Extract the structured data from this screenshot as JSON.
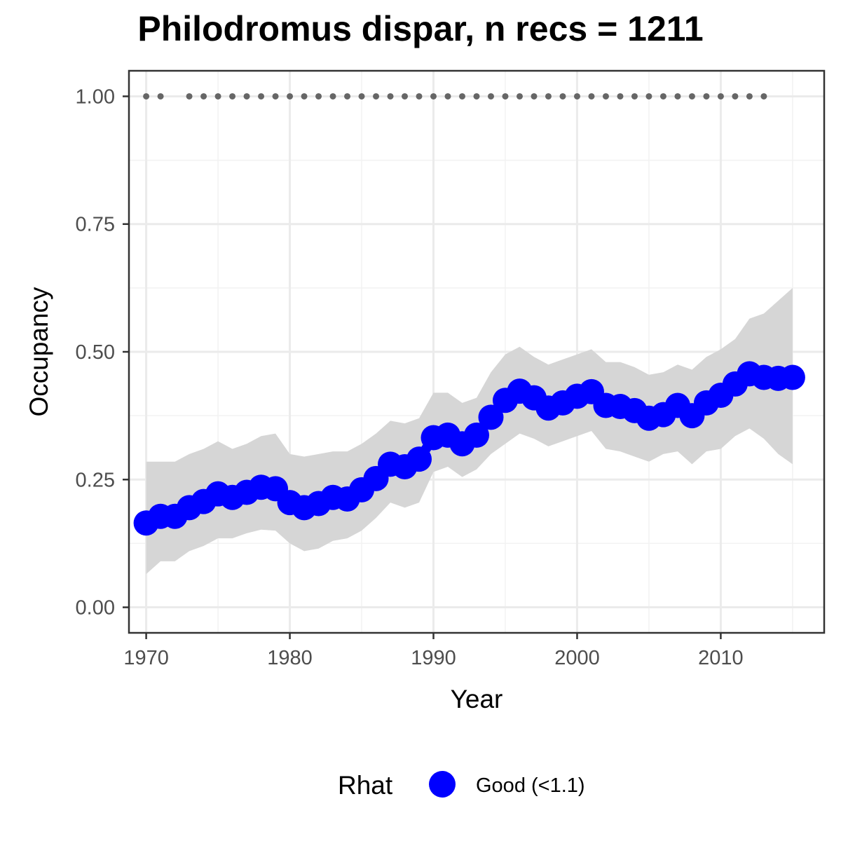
{
  "chart_data": {
    "type": "line",
    "title": "Philodromus dispar, n recs = 1211",
    "xlabel": "Year",
    "ylabel": "Occupancy",
    "xlim": [
      1968.8,
      2017.2
    ],
    "ylim": [
      -0.05,
      1.05
    ],
    "x_ticks": [
      1970,
      1980,
      1990,
      2000,
      2010
    ],
    "x_tick_labels": [
      "1970",
      "1980",
      "1990",
      "2000",
      "2010"
    ],
    "y_ticks": [
      0,
      0.25,
      0.5,
      0.75,
      1.0
    ],
    "y_tick_labels": [
      "0.00",
      "0.25",
      "0.50",
      "0.75",
      "1.00"
    ],
    "grid": true,
    "colors": {
      "series": "#0000ff",
      "ribbon": "#d6d6d6",
      "dots": "#666666"
    },
    "series": [
      {
        "name": "Good (<1.1)",
        "x": [
          1970,
          1971,
          1972,
          1973,
          1974,
          1975,
          1976,
          1977,
          1978,
          1979,
          1980,
          1981,
          1982,
          1983,
          1984,
          1985,
          1986,
          1987,
          1988,
          1989,
          1990,
          1991,
          1992,
          1993,
          1994,
          1995,
          1996,
          1997,
          1998,
          1999,
          2000,
          2001,
          2002,
          2003,
          2004,
          2005,
          2006,
          2007,
          2008,
          2009,
          2010,
          2011,
          2012,
          2013,
          2014,
          2015
        ],
        "y": [
          0.165,
          0.178,
          0.178,
          0.195,
          0.207,
          0.222,
          0.215,
          0.225,
          0.235,
          0.232,
          0.205,
          0.195,
          0.203,
          0.215,
          0.212,
          0.23,
          0.252,
          0.28,
          0.275,
          0.29,
          0.332,
          0.337,
          0.32,
          0.337,
          0.372,
          0.405,
          0.423,
          0.41,
          0.39,
          0.4,
          0.413,
          0.422,
          0.395,
          0.393,
          0.385,
          0.37,
          0.377,
          0.395,
          0.375,
          0.4,
          0.415,
          0.437,
          0.457,
          0.45,
          0.448,
          0.45
        ],
        "lower": [
          0.065,
          0.09,
          0.09,
          0.11,
          0.12,
          0.135,
          0.135,
          0.145,
          0.152,
          0.15,
          0.125,
          0.11,
          0.115,
          0.13,
          0.135,
          0.15,
          0.175,
          0.205,
          0.195,
          0.205,
          0.265,
          0.275,
          0.255,
          0.27,
          0.3,
          0.32,
          0.34,
          0.33,
          0.315,
          0.325,
          0.335,
          0.345,
          0.31,
          0.305,
          0.295,
          0.285,
          0.3,
          0.305,
          0.28,
          0.305,
          0.31,
          0.335,
          0.35,
          0.33,
          0.3,
          0.28
        ],
        "upper": [
          0.285,
          0.285,
          0.285,
          0.3,
          0.31,
          0.325,
          0.31,
          0.32,
          0.335,
          0.34,
          0.3,
          0.295,
          0.3,
          0.305,
          0.305,
          0.32,
          0.34,
          0.365,
          0.36,
          0.37,
          0.42,
          0.42,
          0.4,
          0.41,
          0.46,
          0.495,
          0.51,
          0.49,
          0.475,
          0.485,
          0.495,
          0.505,
          0.48,
          0.48,
          0.47,
          0.455,
          0.46,
          0.475,
          0.465,
          0.49,
          0.505,
          0.525,
          0.565,
          0.575,
          0.6,
          0.625
        ]
      }
    ],
    "record_years": {
      "x": [
        1970,
        1971,
        1973,
        1974,
        1975,
        1976,
        1977,
        1978,
        1979,
        1980,
        1981,
        1982,
        1983,
        1984,
        1985,
        1986,
        1987,
        1988,
        1989,
        1990,
        1991,
        1992,
        1993,
        1994,
        1995,
        1996,
        1997,
        1998,
        1999,
        2000,
        2001,
        2002,
        2003,
        2004,
        2005,
        2006,
        2007,
        2008,
        2009,
        2010,
        2011,
        2012,
        2013
      ],
      "y": 1.0
    },
    "legend": {
      "title": "Rhat",
      "labels": [
        "Good (<1.1)"
      ],
      "placement": "bottom"
    }
  }
}
